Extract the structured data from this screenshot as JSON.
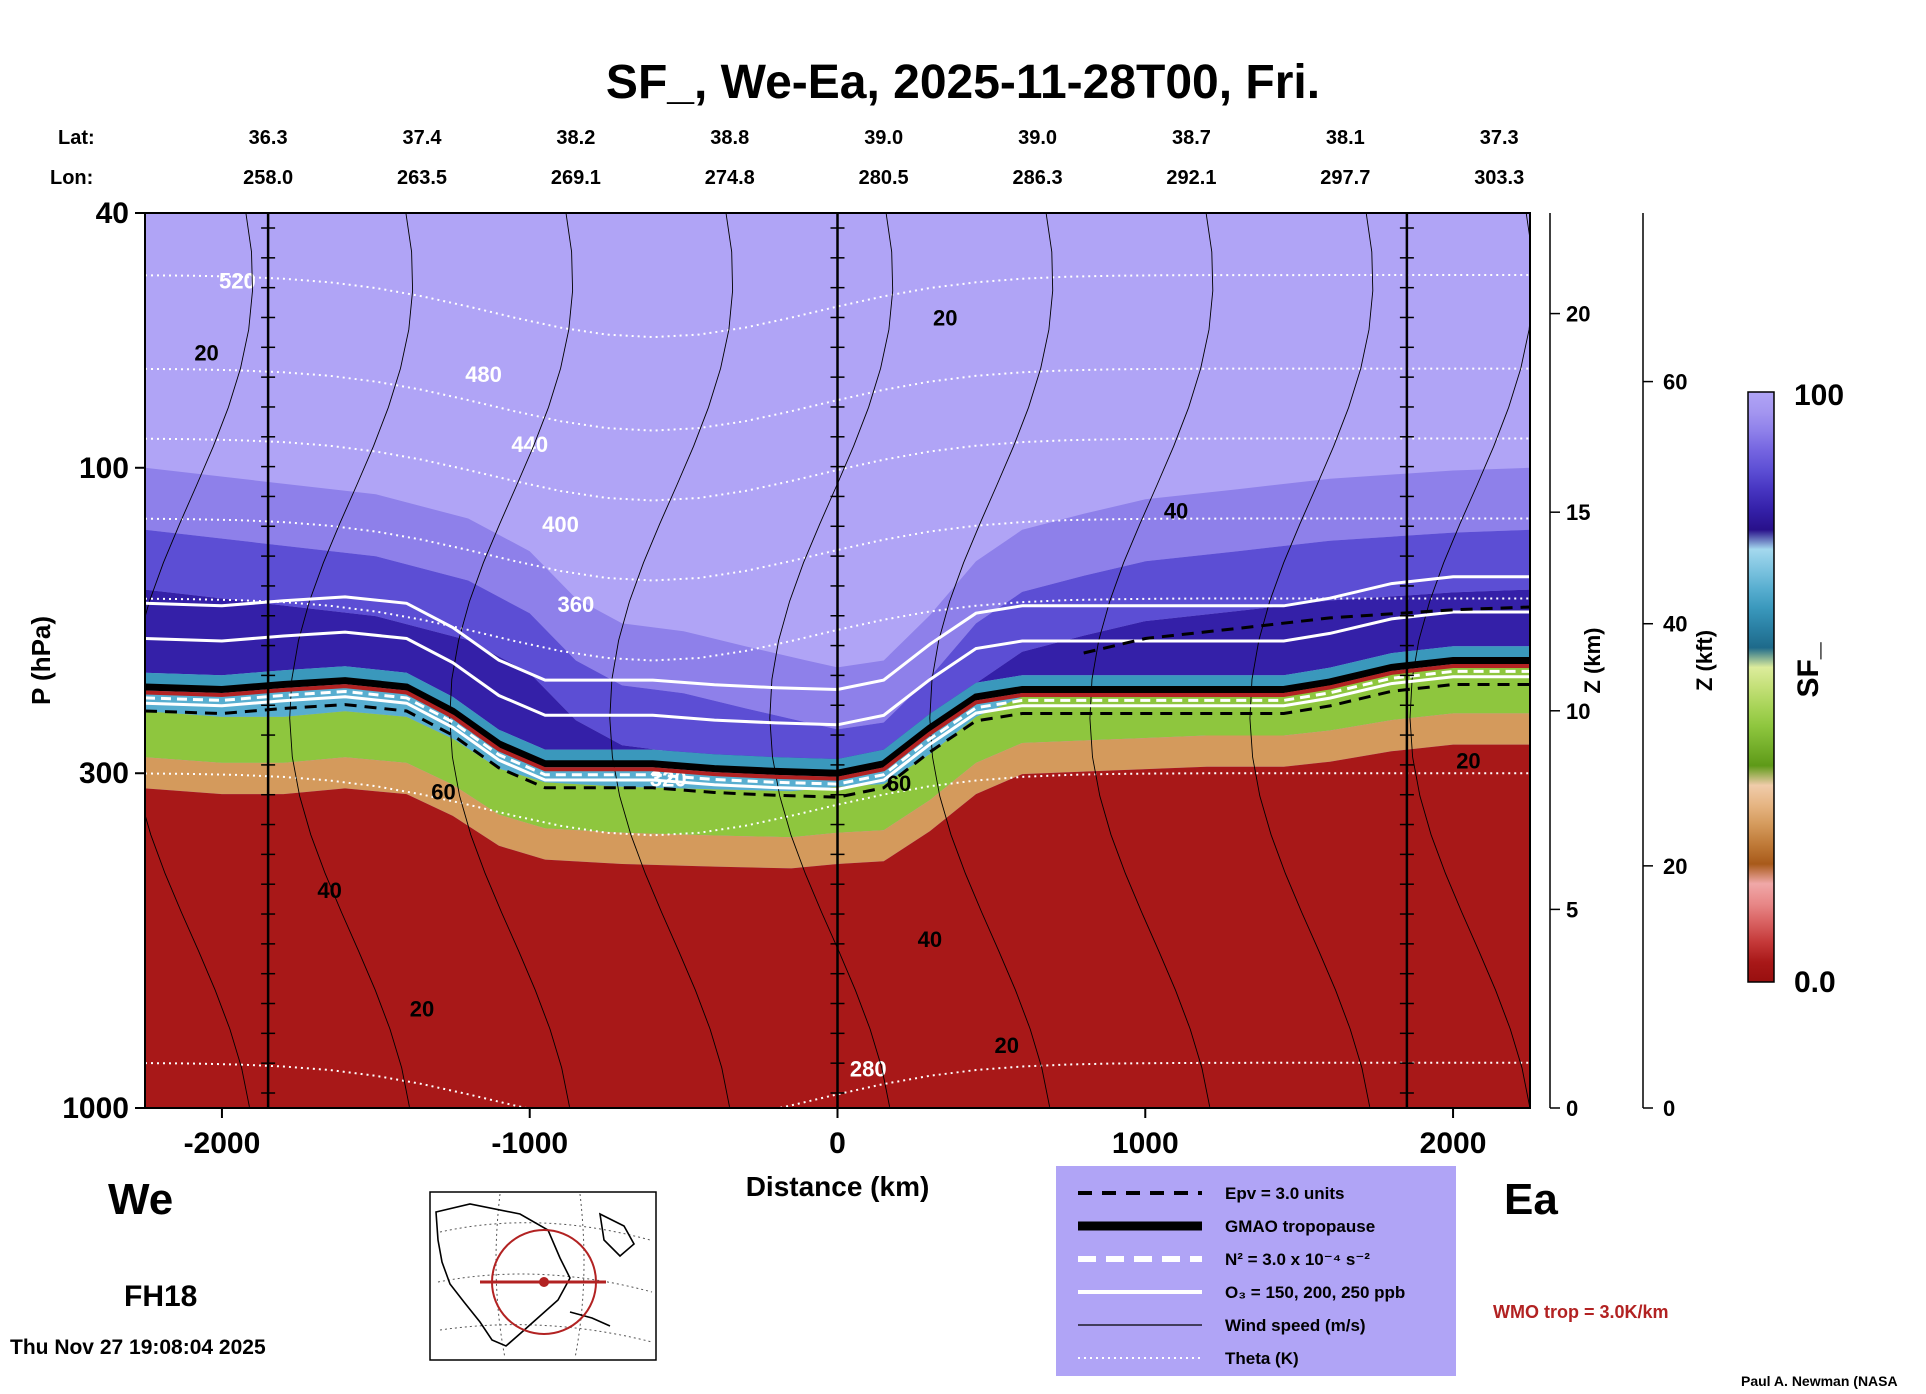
{
  "chart_data": {
    "type": "heatmap",
    "title": "SF_, We-Ea, 2025-11-28T00, Fri.",
    "left_end": "We",
    "right_end": "Ea",
    "forecast_hour": "FH18",
    "timestamp": "Thu Nov 27 19:08:04 2025",
    "credit": "Paul A. Newman (NASA",
    "xlabel": "Distance (km)",
    "xlim": [
      -2250,
      2250
    ],
    "xticks": [
      -2000,
      -1000,
      0,
      1000,
      2000
    ],
    "ylabel": "P (hPa)",
    "ylim": [
      40,
      1000
    ],
    "yscale": "log",
    "yticks": [
      40,
      100,
      300,
      1000
    ],
    "z_km_label": "Z (km)",
    "z_km_ticks": [
      0,
      5,
      10,
      15,
      20
    ],
    "z_kft_label": "Z (kft)",
    "z_kft_ticks": [
      0,
      20,
      40,
      60
    ],
    "lat_label": "Lat:",
    "lon_label": "Lon:",
    "lat_lon_axis": {
      "x": [
        -1850,
        -1350,
        -850,
        -350,
        150,
        650,
        1150,
        1650,
        2150
      ],
      "lat": [
        "36.3",
        "37.4",
        "38.2",
        "38.8",
        "39.0",
        "39.0",
        "38.7",
        "38.1",
        "37.3"
      ],
      "lon": [
        "258.0",
        "263.5",
        "269.1",
        "274.8",
        "280.5",
        "286.3",
        "292.1",
        "297.7",
        "303.3"
      ]
    },
    "vertical_markers_km": [
      -1850,
      0,
      1850
    ],
    "colorbar": {
      "label": "SF_",
      "min": "0.0",
      "max": "100",
      "colors": [
        "#980f0f",
        "#a81818",
        "#c43838",
        "#d86060",
        "#e88888",
        "#f0a8a8",
        "#a85a1a",
        "#bf7a38",
        "#d49a5c",
        "#e6b583",
        "#f0ccaa",
        "#5e9a18",
        "#76b02c",
        "#8ec63e",
        "#a8d458",
        "#c4e078",
        "#dcec9c",
        "#1e6a8a",
        "#2a80a4",
        "#3a98bc",
        "#58aed0",
        "#7ec4e0",
        "#a4d8ee",
        "#28108a",
        "#3420a8",
        "#4634c0",
        "#5c4ed4",
        "#7464e0",
        "#8e80ea",
        "#a496f0",
        "#b0a4f6"
      ]
    },
    "field_levels_hpa": {
      "tropopause": [
        [
          -2250,
          220
        ],
        [
          -2000,
          222
        ],
        [
          -1800,
          218
        ],
        [
          -1600,
          215
        ],
        [
          -1400,
          220
        ],
        [
          -1250,
          240
        ],
        [
          -1100,
          270
        ],
        [
          -950,
          290
        ],
        [
          -800,
          290
        ],
        [
          -600,
          290
        ],
        [
          -400,
          295
        ],
        [
          -200,
          298
        ],
        [
          0,
          300
        ],
        [
          150,
          290
        ],
        [
          300,
          255
        ],
        [
          450,
          228
        ],
        [
          600,
          222
        ],
        [
          800,
          222
        ],
        [
          1000,
          222
        ],
        [
          1200,
          222
        ],
        [
          1450,
          222
        ],
        [
          1600,
          216
        ],
        [
          1800,
          205
        ],
        [
          2000,
          200
        ],
        [
          2250,
          200
        ]
      ],
      "boundary_lower": [
        [
          -2250,
          240
        ],
        [
          -2000,
          245
        ],
        [
          -1800,
          245
        ],
        [
          -1600,
          240
        ],
        [
          -1400,
          245
        ],
        [
          -1250,
          265
        ],
        [
          -1100,
          295
        ],
        [
          -950,
          310
        ],
        [
          -700,
          315
        ],
        [
          -400,
          318
        ],
        [
          -150,
          320
        ],
        [
          0,
          315
        ],
        [
          150,
          312
        ],
        [
          300,
          280
        ],
        [
          450,
          245
        ],
        [
          600,
          228
        ],
        [
          900,
          225
        ],
        [
          1200,
          222
        ],
        [
          1450,
          222
        ],
        [
          1600,
          218
        ],
        [
          1800,
          210
        ],
        [
          2000,
          205
        ],
        [
          2250,
          205
        ]
      ],
      "upper_violet_base": [
        [
          -2250,
          100
        ],
        [
          -1500,
          110
        ],
        [
          -1200,
          120
        ],
        [
          -1000,
          135
        ],
        [
          -850,
          160
        ],
        [
          -700,
          175
        ],
        [
          -500,
          180
        ],
        [
          -300,
          190
        ],
        [
          -100,
          200
        ],
        [
          0,
          205
        ],
        [
          150,
          200
        ],
        [
          300,
          170
        ],
        [
          450,
          140
        ],
        [
          600,
          125
        ],
        [
          800,
          118
        ],
        [
          1000,
          112
        ],
        [
          1300,
          108
        ],
        [
          1600,
          104
        ],
        [
          2000,
          101
        ],
        [
          2250,
          100
        ]
      ]
    },
    "legend": [
      {
        "label": "Epv = 3.0 units",
        "style": "dashed-black"
      },
      {
        "label": "GMAO tropopause",
        "style": "thick-black"
      },
      {
        "label": "N² = 3.0 x 10⁻⁴ s⁻²",
        "style": "dashed-white"
      },
      {
        "label": "O₃ = 150, 200, 250 ppb",
        "style": "solid-white"
      },
      {
        "label": "Wind speed (m/s)",
        "style": "thin-black"
      },
      {
        "label": "Theta (K)",
        "style": "dotted-white"
      }
    ],
    "wmo_label": "WMO trop = 3.0K/km",
    "theta_labels": [
      "520",
      "480",
      "440",
      "400",
      "360",
      "320",
      "280"
    ],
    "wind_labels": [
      "20",
      "40",
      "60"
    ]
  }
}
